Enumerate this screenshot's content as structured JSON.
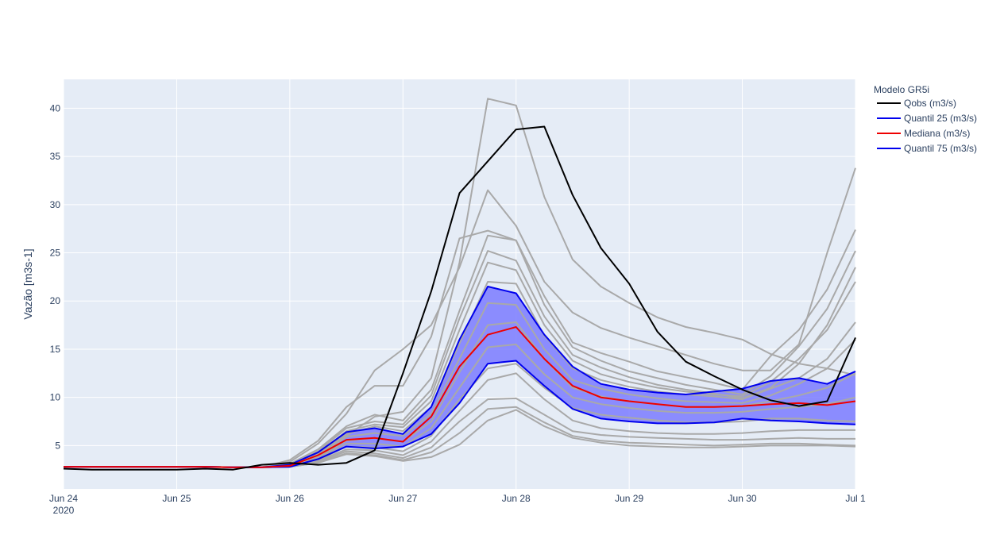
{
  "chart_data": {
    "type": "line",
    "title": "",
    "xlabel": "",
    "ylabel": "Vazão [m3s-1]",
    "x_ticks": [
      "Jun 24",
      "Jun 25",
      "Jun 26",
      "Jun 27",
      "Jun 28",
      "Jun 29",
      "Jun 30",
      "Jul 1"
    ],
    "x_tick_sublabel": "2020",
    "y_ticks": [
      5,
      10,
      15,
      20,
      25,
      30,
      35,
      40
    ],
    "xlim": [
      "2020-06-24 00:00",
      "2020-07-01 00:00"
    ],
    "ylim": [
      0.5,
      43
    ],
    "grid": true,
    "legend_title": "Modelo GR5i",
    "legend_position": "top-right outside",
    "x": [
      "2020-06-24 00:00",
      "2020-06-24 06:00",
      "2020-06-24 12:00",
      "2020-06-24 18:00",
      "2020-06-25 00:00",
      "2020-06-25 06:00",
      "2020-06-25 12:00",
      "2020-06-25 18:00",
      "2020-06-26 00:00",
      "2020-06-26 06:00",
      "2020-06-26 12:00",
      "2020-06-26 18:00",
      "2020-06-27 00:00",
      "2020-06-27 06:00",
      "2020-06-27 12:00",
      "2020-06-27 18:00",
      "2020-06-28 00:00",
      "2020-06-28 06:00",
      "2020-06-28 12:00",
      "2020-06-28 18:00",
      "2020-06-29 00:00",
      "2020-06-29 06:00",
      "2020-06-29 12:00",
      "2020-06-29 18:00",
      "2020-06-30 00:00",
      "2020-06-30 06:00",
      "2020-06-30 12:00",
      "2020-06-30 18:00",
      "2020-07-01 00:00"
    ],
    "series": [
      {
        "name": "Qobs (m3/s)",
        "color": "#000000",
        "values": [
          2.6,
          2.5,
          2.5,
          2.5,
          2.5,
          2.6,
          2.5,
          3.0,
          3.2,
          3.0,
          3.2,
          4.5,
          12.5,
          21.0,
          31.2,
          34.5,
          37.8,
          38.1,
          31.0,
          25.5,
          21.8,
          16.8,
          13.7,
          12.2,
          10.8,
          9.7,
          9.1,
          9.6,
          16.2
        ]
      },
      {
        "name": "Quantil 25 (m3/s)",
        "color": "#0000ee",
        "values": [
          2.8,
          2.8,
          2.8,
          2.8,
          2.8,
          2.8,
          2.75,
          2.75,
          2.8,
          3.6,
          4.9,
          4.7,
          4.9,
          6.2,
          9.4,
          13.5,
          13.8,
          11.2,
          8.8,
          7.8,
          7.5,
          7.3,
          7.3,
          7.4,
          7.8,
          7.6,
          7.5,
          7.3,
          7.2
        ]
      },
      {
        "name": "Mediana (m3/s)",
        "color": "#ee0000",
        "values": [
          2.8,
          2.8,
          2.8,
          2.8,
          2.8,
          2.8,
          2.75,
          2.75,
          2.9,
          4.0,
          5.6,
          5.8,
          5.4,
          8.0,
          13.2,
          16.5,
          17.3,
          14.0,
          11.2,
          10.0,
          9.6,
          9.3,
          9.0,
          9.0,
          9.1,
          9.3,
          9.4,
          9.2,
          9.6
        ]
      },
      {
        "name": "Quantil 75 (m3/s)",
        "color": "#0000ee",
        "values": [
          2.8,
          2.8,
          2.8,
          2.8,
          2.8,
          2.8,
          2.75,
          2.75,
          3.0,
          4.3,
          6.4,
          6.8,
          6.2,
          9.0,
          16.0,
          21.5,
          20.8,
          16.5,
          13.2,
          11.4,
          10.8,
          10.5,
          10.3,
          10.6,
          10.9,
          11.7,
          12.0,
          11.4,
          12.7
        ]
      }
    ],
    "ensemble": {
      "color": "#a9a9a9",
      "band_color": "#7b7bff",
      "members": [
        [
          2.8,
          2.8,
          2.8,
          2.8,
          2.8,
          2.8,
          2.75,
          2.75,
          2.9,
          4.0,
          6.0,
          8.0,
          8.5,
          12.0,
          24.0,
          41.0,
          40.3,
          30.8,
          24.3,
          21.5,
          19.8,
          18.3,
          17.3,
          16.7,
          16.0,
          14.5,
          13.5,
          13.0,
          12.3
        ],
        [
          2.8,
          2.8,
          2.8,
          2.8,
          2.8,
          2.8,
          2.75,
          2.75,
          3.3,
          5.2,
          8.3,
          12.8,
          15.0,
          17.5,
          23.5,
          31.5,
          27.8,
          22.0,
          18.8,
          17.2,
          16.2,
          15.3,
          14.4,
          13.5,
          12.8,
          12.8,
          15.5,
          25.0,
          33.8
        ],
        [
          2.8,
          2.8,
          2.8,
          2.8,
          2.8,
          2.8,
          2.75,
          2.75,
          3.5,
          5.5,
          9.0,
          11.2,
          11.2,
          16.3,
          26.5,
          27.3,
          26.3,
          20.5,
          15.7,
          14.6,
          13.7,
          12.7,
          12.1,
          11.5,
          10.8,
          14.3,
          17.0,
          21.2,
          27.4
        ],
        [
          2.8,
          2.8,
          2.8,
          2.8,
          2.8,
          2.8,
          2.75,
          2.75,
          3.1,
          4.6,
          7.0,
          8.2,
          7.6,
          10.8,
          19.0,
          26.8,
          26.3,
          19.6,
          15.2,
          13.8,
          12.7,
          12.0,
          11.3,
          10.8,
          10.3,
          12.2,
          15.3,
          19.2,
          25.2
        ],
        [
          2.8,
          2.8,
          2.8,
          2.8,
          2.8,
          2.8,
          2.75,
          2.75,
          3.0,
          4.4,
          6.8,
          7.5,
          7.2,
          10.2,
          18.2,
          25.2,
          24.2,
          18.4,
          14.4,
          13.1,
          12.1,
          11.3,
          10.8,
          10.4,
          9.9,
          11.0,
          13.5,
          17.5,
          23.5
        ],
        [
          2.8,
          2.8,
          2.8,
          2.8,
          2.8,
          2.8,
          2.75,
          2.75,
          3.0,
          4.2,
          6.5,
          7.2,
          6.9,
          9.6,
          17.0,
          24.0,
          23.2,
          17.5,
          13.8,
          12.4,
          11.6,
          11.0,
          10.6,
          10.3,
          10.1,
          11.6,
          14.0,
          17.0,
          22.0
        ],
        [
          2.8,
          2.8,
          2.8,
          2.8,
          2.8,
          2.8,
          2.75,
          2.75,
          2.9,
          4.1,
          6.2,
          7.0,
          6.5,
          9.0,
          15.6,
          22.0,
          21.8,
          16.4,
          13.0,
          11.8,
          11.1,
          10.6,
          10.3,
          10.1,
          9.8,
          10.9,
          12.0,
          14.0,
          17.8
        ],
        [
          2.8,
          2.8,
          2.8,
          2.8,
          2.8,
          2.8,
          2.75,
          2.75,
          2.9,
          4.0,
          5.9,
          6.3,
          6.0,
          8.3,
          14.0,
          19.8,
          19.6,
          15.0,
          11.8,
          10.9,
          10.3,
          9.9,
          9.6,
          9.5,
          9.4,
          10.2,
          11.4,
          13.0,
          16.0
        ],
        [
          2.8,
          2.8,
          2.8,
          2.8,
          2.8,
          2.8,
          2.75,
          2.75,
          2.9,
          3.8,
          5.5,
          5.8,
          5.4,
          7.5,
          12.6,
          17.5,
          17.8,
          14.0,
          11.0,
          10.1,
          9.6,
          9.3,
          9.0,
          9.0,
          9.1,
          9.6,
          10.2,
          11.0,
          12.5
        ],
        [
          2.8,
          2.8,
          2.8,
          2.8,
          2.8,
          2.8,
          2.75,
          2.75,
          2.8,
          3.7,
          5.2,
          5.2,
          4.9,
          6.8,
          11.0,
          15.2,
          15.5,
          12.4,
          10.0,
          9.3,
          8.9,
          8.6,
          8.4,
          8.4,
          8.5,
          8.8,
          9.0,
          9.3,
          10.0
        ],
        [
          2.8,
          2.8,
          2.8,
          2.8,
          2.8,
          2.8,
          2.75,
          2.75,
          2.8,
          3.5,
          4.9,
          4.8,
          4.4,
          6.0,
          9.8,
          13.0,
          13.5,
          11.0,
          8.9,
          8.2,
          7.9,
          7.6,
          7.4,
          7.4,
          7.5,
          7.8,
          7.8,
          7.6,
          7.5
        ],
        [
          2.8,
          2.8,
          2.8,
          2.8,
          2.8,
          2.8,
          2.75,
          2.75,
          2.8,
          3.4,
          4.6,
          4.5,
          4.0,
          5.4,
          8.6,
          11.8,
          12.5,
          9.8,
          7.6,
          6.8,
          6.5,
          6.3,
          6.2,
          6.2,
          6.3,
          6.5,
          6.6,
          6.6,
          6.6
        ],
        [
          2.8,
          2.8,
          2.8,
          2.8,
          2.8,
          2.8,
          2.75,
          2.75,
          2.8,
          3.3,
          4.4,
          4.2,
          3.7,
          4.8,
          7.5,
          9.8,
          9.9,
          8.2,
          6.5,
          6.1,
          5.9,
          5.8,
          5.7,
          5.6,
          5.6,
          5.7,
          5.8,
          5.7,
          5.7
        ],
        [
          2.8,
          2.8,
          2.8,
          2.8,
          2.8,
          2.8,
          2.75,
          2.75,
          2.8,
          3.2,
          4.2,
          4.0,
          3.5,
          4.3,
          6.3,
          8.8,
          9.0,
          7.4,
          6.0,
          5.5,
          5.3,
          5.2,
          5.1,
          5.0,
          5.1,
          5.2,
          5.2,
          5.1,
          5.0
        ],
        [
          2.8,
          2.8,
          2.8,
          2.8,
          2.8,
          2.8,
          2.75,
          2.75,
          2.8,
          3.2,
          4.1,
          3.9,
          3.4,
          3.8,
          5.1,
          7.6,
          8.7,
          7.0,
          5.8,
          5.3,
          5.0,
          4.9,
          4.8,
          4.8,
          4.9,
          5.0,
          5.0,
          5.0,
          4.9
        ]
      ]
    }
  }
}
